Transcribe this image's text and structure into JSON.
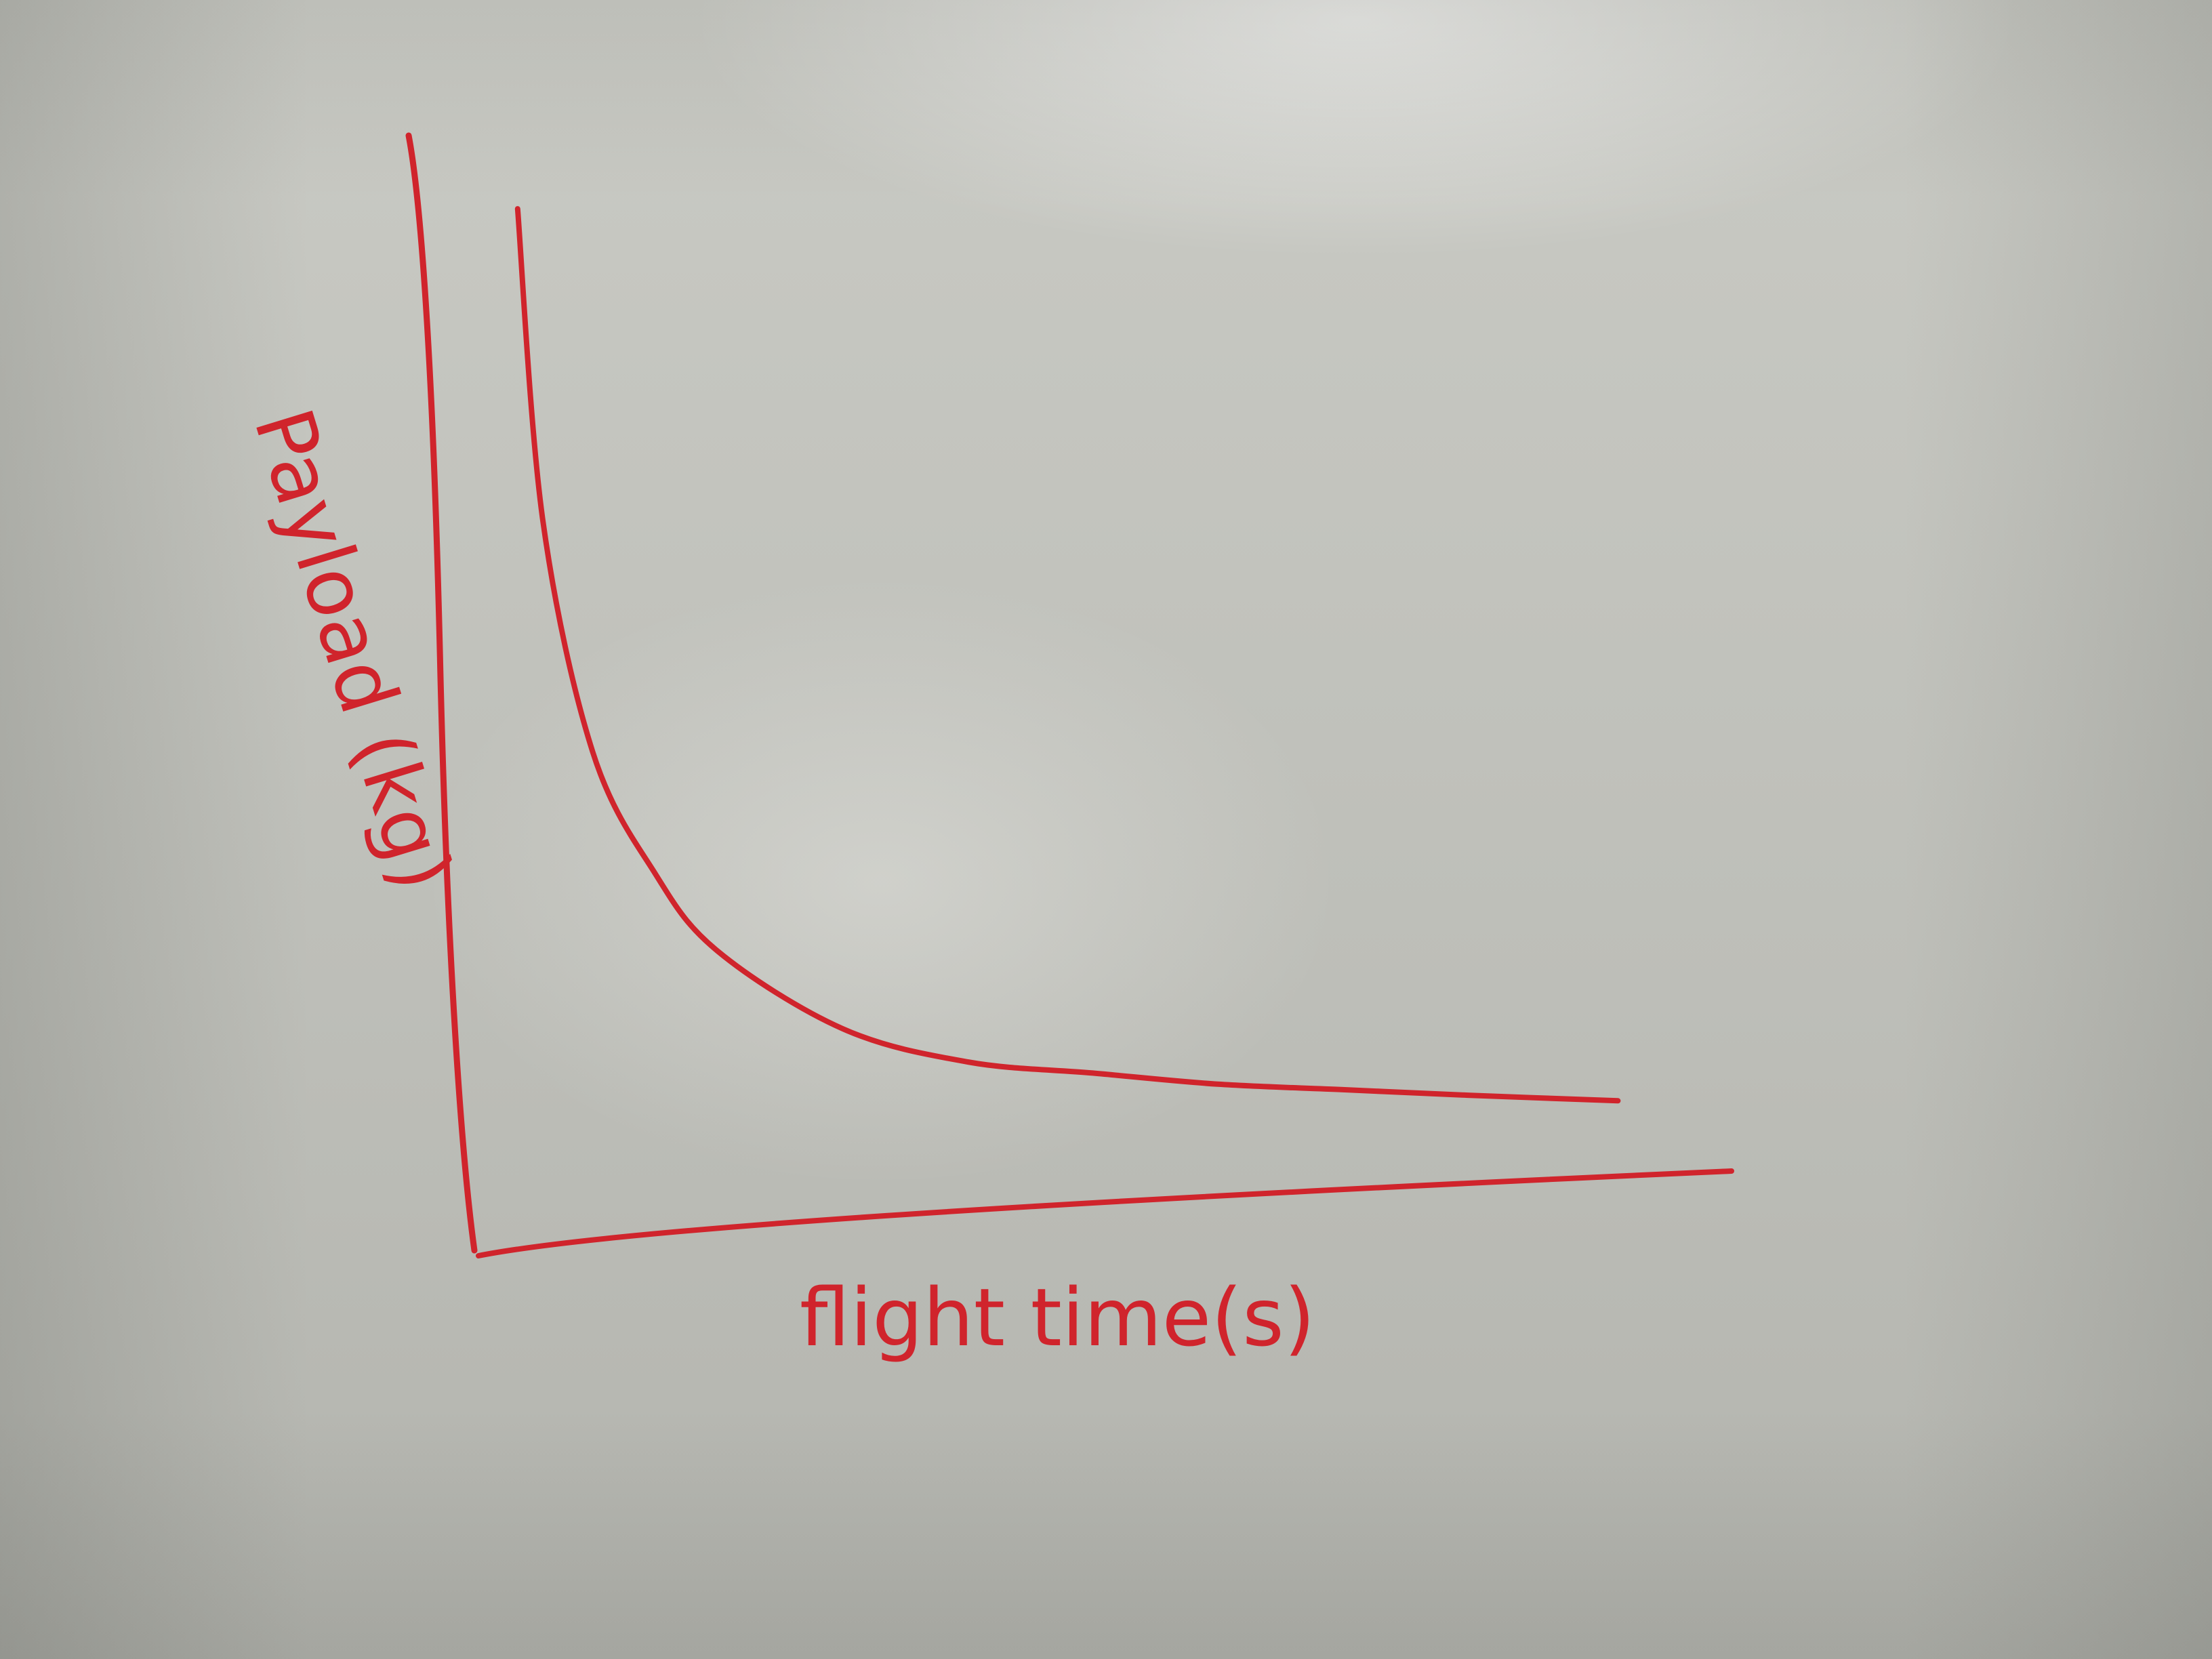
{
  "chart_data": {
    "type": "line",
    "xlabel": "flight time(s)",
    "ylabel": "Payload (kg)",
    "grid": false,
    "legend": "none",
    "x_ticks_labeled": false,
    "y_ticks_labeled": false,
    "series": [
      {
        "shape": "decreasing hyperbolic curve",
        "x": [
          0.04,
          0.06,
          0.1,
          0.15,
          0.2,
          0.3,
          0.4,
          0.5,
          0.6,
          0.7,
          0.8,
          0.92
        ],
        "y": [
          0.94,
          0.66,
          0.45,
          0.34,
          0.27,
          0.2,
          0.17,
          0.16,
          0.15,
          0.145,
          0.14,
          0.135
        ]
      }
    ]
  },
  "colors": {
    "ink": "#d0242c",
    "board": "#c3c4be"
  }
}
